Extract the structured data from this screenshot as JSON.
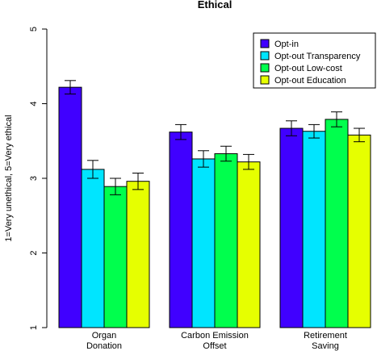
{
  "chart_data": {
    "type": "bar",
    "title": "Ethical",
    "xlabel": "",
    "ylabel": "1=Very unethical, 5=Very ethical",
    "ylim": [
      1,
      5
    ],
    "yticks": [
      "1",
      "2",
      "3",
      "4",
      "5"
    ],
    "categories": [
      [
        "Organ",
        "Donation"
      ],
      [
        "Carbon Emission",
        "Offset"
      ],
      [
        "Retirement",
        "Saving"
      ]
    ],
    "series": [
      {
        "name": "Opt-in",
        "color": "#4000ff",
        "values": [
          4.22,
          3.62,
          3.67
        ],
        "err": [
          0.09,
          0.1,
          0.1
        ]
      },
      {
        "name": "Opt-out Transparency",
        "color": "#00e5ff",
        "values": [
          3.12,
          3.26,
          3.63
        ],
        "err": [
          0.12,
          0.11,
          0.09
        ]
      },
      {
        "name": "Opt-out Low-cost",
        "color": "#00ff4d",
        "values": [
          2.89,
          3.33,
          3.79
        ],
        "err": [
          0.11,
          0.1,
          0.1
        ]
      },
      {
        "name": "Opt-out Education",
        "color": "#e6ff00",
        "values": [
          2.96,
          3.22,
          3.58
        ],
        "err": [
          0.11,
          0.1,
          0.09
        ]
      }
    ],
    "grid": false,
    "legend_position": "top-right",
    "error_bars": true
  }
}
